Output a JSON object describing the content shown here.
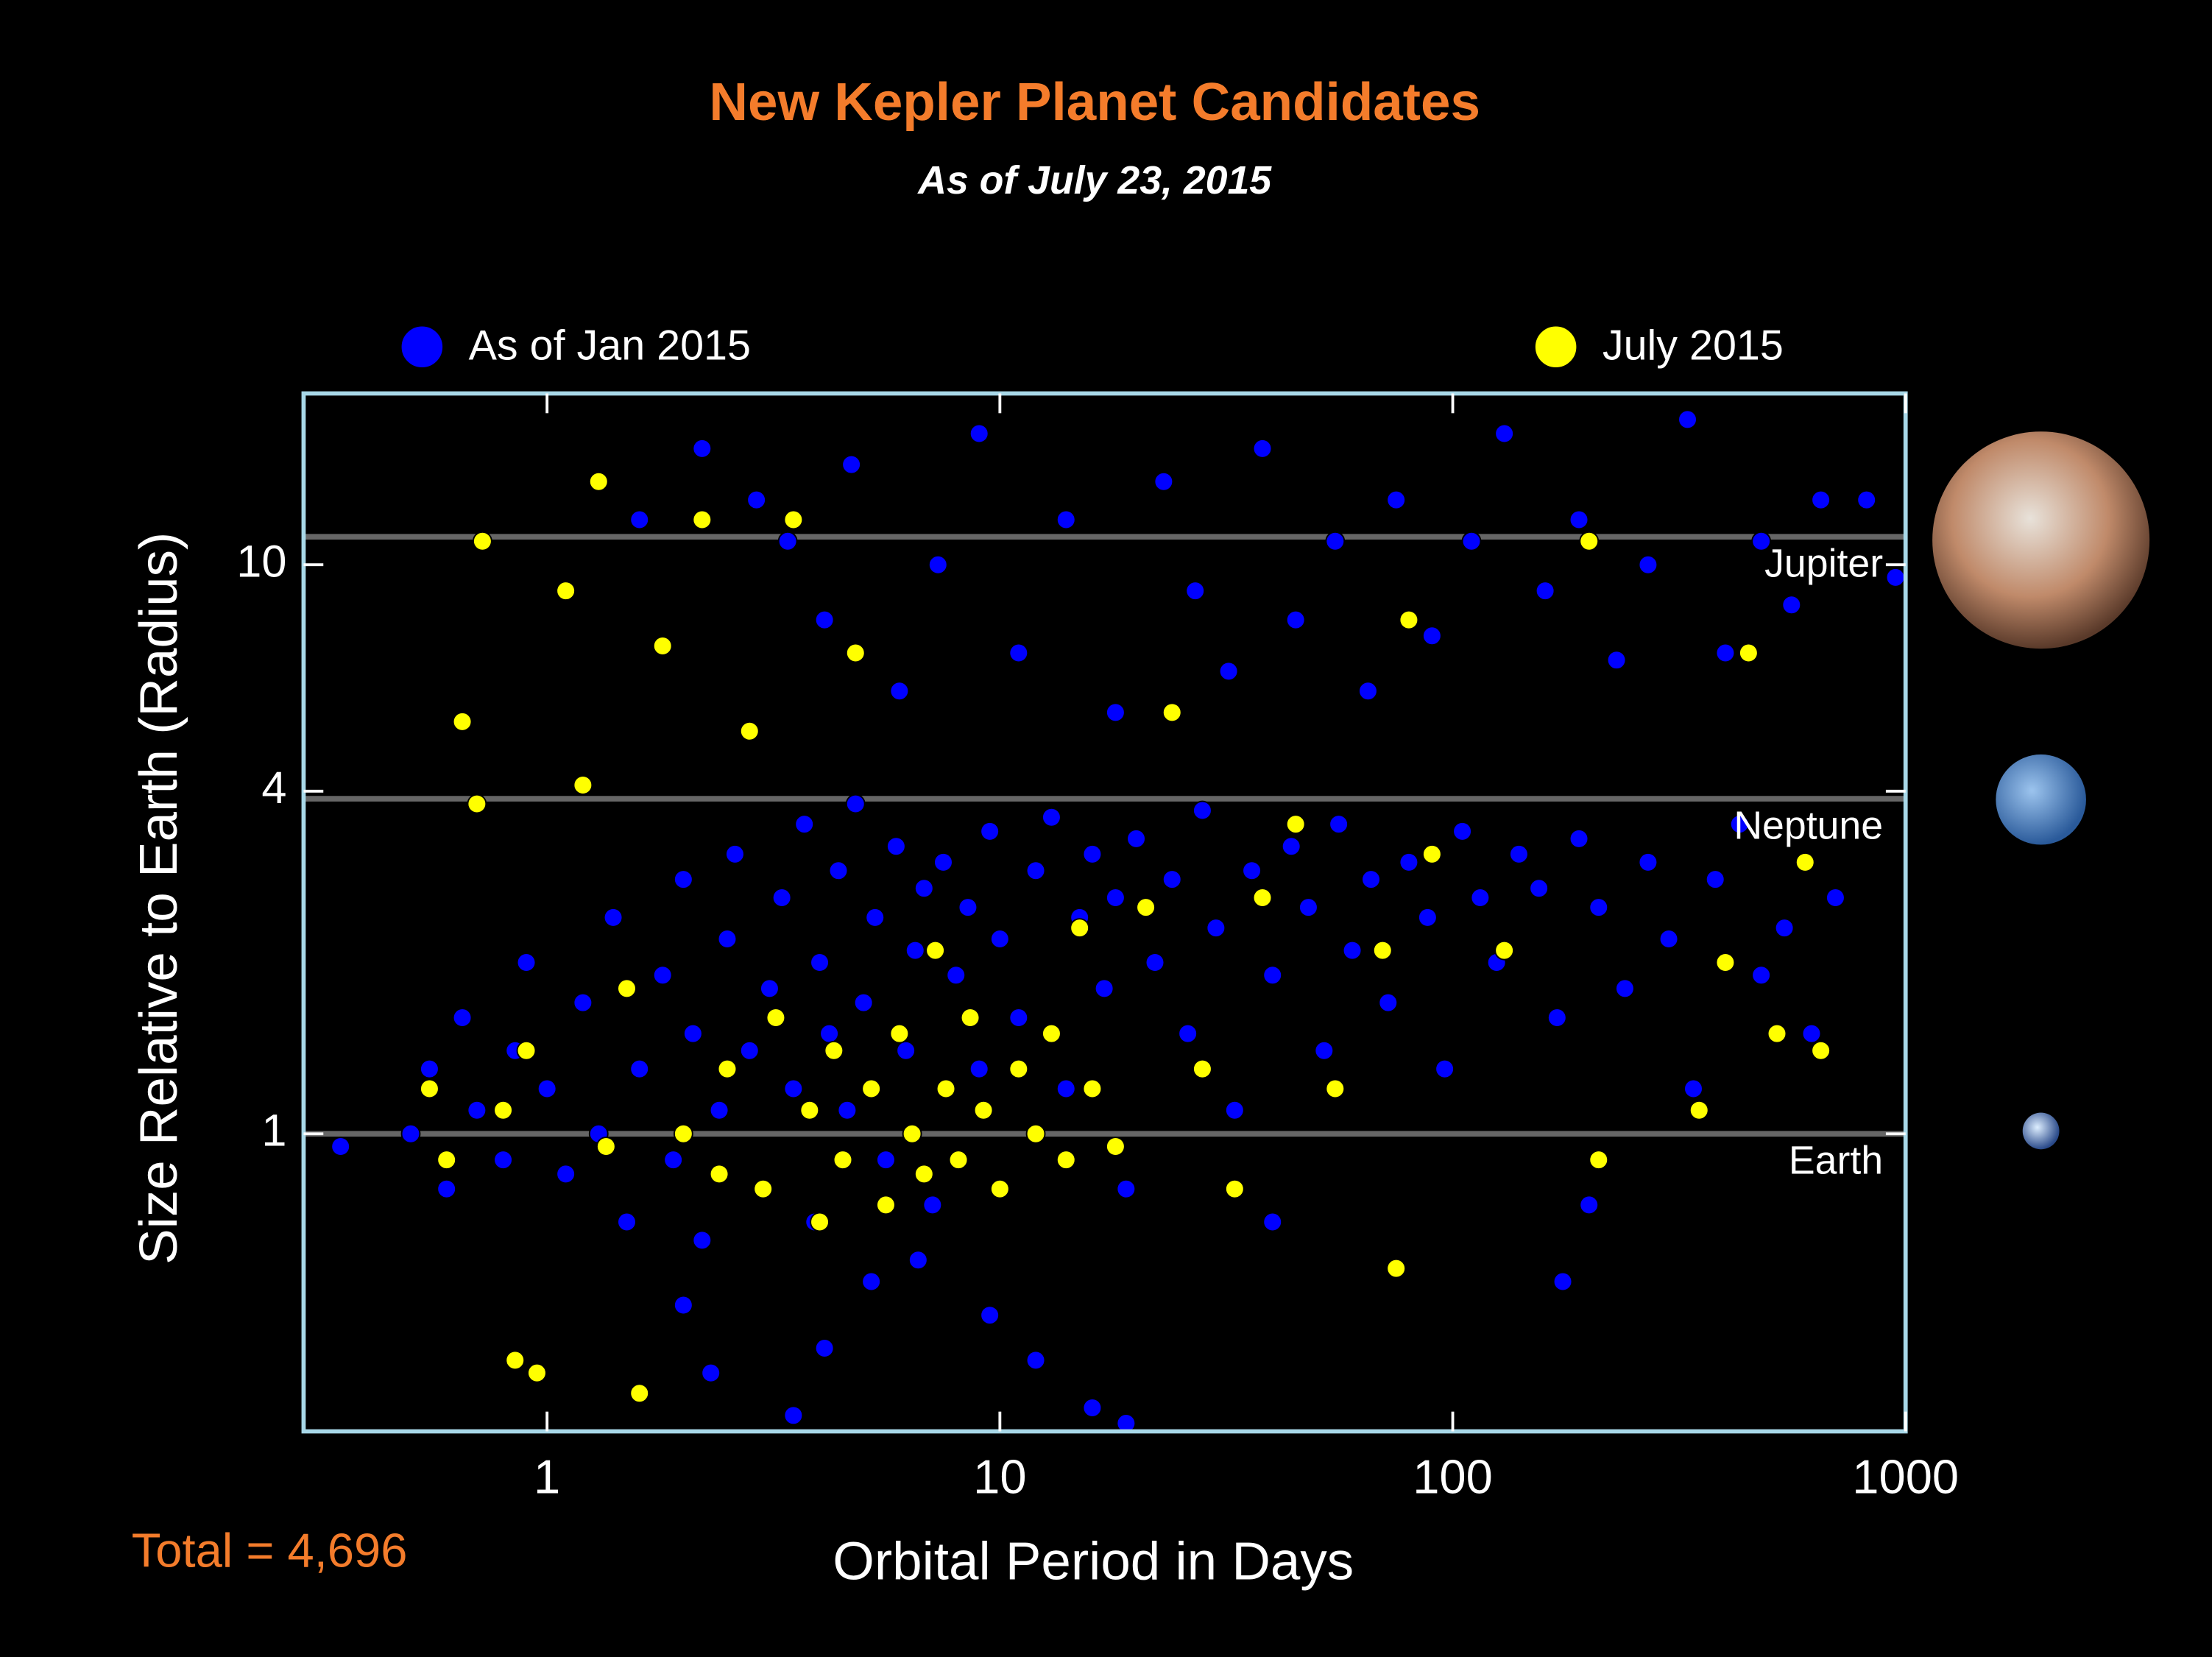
{
  "chart_data": {
    "type": "scatter",
    "title": "New Kepler Planet Candidates",
    "subtitle": "As of July 23, 2015",
    "x_label": "Orbital Period in Days",
    "y_label": "Size Relative to Earth (Radius)",
    "annotation": "Total = 4,696",
    "log_x": true,
    "log_y": true,
    "xlim": [
      0.29,
      1000
    ],
    "ylim": [
      0.3,
      20
    ],
    "xticks": [
      1,
      10,
      100,
      1000
    ],
    "yticks": [
      1,
      4,
      10
    ],
    "reference_lines": [
      {
        "value": 11.2,
        "label": "Jupiter"
      },
      {
        "value": 3.88,
        "label": "Neptune"
      },
      {
        "value": 1,
        "label": "Earth"
      }
    ],
    "series": [
      {
        "name": "As of Jan 2015",
        "color": "#0000ff",
        "x": [
          0.5,
          0.55,
          0.6,
          0.65,
          0.7,
          0.8,
          0.85,
          0.9,
          1.0,
          1.1,
          1.2,
          1.3,
          1.4,
          1.5,
          1.6,
          1.8,
          1.9,
          2.0,
          2.1,
          2.2,
          2.4,
          2.5,
          2.6,
          2.8,
          3.0,
          3.1,
          3.3,
          3.5,
          3.7,
          3.9,
          4.0,
          4.2,
          4.4,
          4.6,
          4.8,
          5.0,
          5.3,
          5.6,
          5.9,
          6.2,
          6.5,
          6.8,
          7.1,
          7.5,
          8.0,
          8.5,
          9.0,
          9.5,
          10,
          11,
          12,
          13,
          14,
          15,
          16,
          17,
          18,
          19,
          20,
          22,
          24,
          26,
          28,
          30,
          33,
          36,
          40,
          44,
          48,
          52,
          56,
          60,
          66,
          72,
          80,
          88,
          96,
          105,
          115,
          125,
          140,
          155,
          170,
          190,
          210,
          240,
          270,
          300,
          340,
          380,
          430,
          480,
          540,
          620,
          700,
          1.6,
          2.2,
          2.9,
          3.4,
          4.1,
          4.7,
          6,
          7.3,
          9,
          11,
          14,
          18,
          23,
          27,
          32,
          38,
          45,
          55,
          65,
          75,
          90,
          110,
          130,
          160,
          190,
          230,
          270,
          330,
          400,
          480,
          560,
          650,
          820,
          950,
          2.0,
          2.3,
          3.5,
          4.1,
          5.2,
          6.6,
          9.5,
          12,
          16,
          19,
          175,
          40,
          200,
          0.35
        ],
        "y": [
          1.0,
          1.3,
          0.8,
          1.6,
          1.1,
          0.9,
          1.4,
          2.0,
          1.2,
          0.85,
          1.7,
          1.0,
          2.4,
          0.7,
          1.3,
          1.9,
          0.9,
          2.8,
          1.5,
          0.65,
          1.1,
          2.2,
          3.1,
          1.4,
          0.8,
          1.8,
          2.6,
          1.2,
          3.5,
          0.7,
          2.0,
          1.5,
          2.9,
          1.1,
          3.8,
          1.7,
          2.4,
          0.9,
          3.2,
          1.4,
          2.1,
          2.7,
          0.75,
          3.0,
          1.9,
          2.5,
          1.3,
          3.4,
          2.2,
          1.6,
          2.9,
          3.6,
          1.2,
          2.4,
          3.1,
          1.8,
          2.6,
          0.8,
          3.3,
          2.0,
          2.8,
          1.5,
          3.7,
          2.3,
          1.1,
          2.9,
          1.9,
          3.2,
          2.5,
          1.4,
          3.5,
          2.1,
          2.8,
          1.7,
          3.0,
          2.4,
          1.3,
          3.4,
          2.6,
          2.0,
          3.1,
          2.7,
          1.6,
          3.3,
          2.5,
          1.8,
          3.0,
          2.2,
          1.2,
          2.8,
          3.5,
          1.9,
          2.3,
          1.5,
          2.6,
          12,
          16,
          13,
          11,
          8,
          15,
          6,
          10,
          17,
          7,
          12,
          5.5,
          14,
          9,
          6.5,
          16,
          8,
          11,
          6,
          13,
          7.5,
          11,
          17,
          9,
          12,
          6.8,
          10,
          18,
          7,
          11,
          8.5,
          13,
          13,
          9.5,
          0.5,
          0.38,
          0.32,
          0.42,
          0.55,
          0.6,
          0.48,
          0.4,
          0.33,
          0.31,
          0.55,
          0.7,
          0.75,
          0.95
        ]
      },
      {
        "name": "July 2015",
        "color": "#ffff00",
        "x": [
          0.55,
          0.6,
          0.65,
          0.7,
          0.72,
          0.8,
          0.85,
          0.9,
          0.95,
          1.1,
          1.2,
          1.3,
          1.35,
          1.5,
          1.6,
          1.8,
          2.0,
          2.2,
          2.4,
          2.5,
          2.8,
          3.0,
          3.2,
          3.5,
          3.8,
          4.0,
          4.3,
          4.5,
          4.8,
          5.2,
          5.6,
          6.0,
          6.4,
          6.8,
          7.2,
          7.6,
          8.1,
          8.6,
          9.2,
          10,
          11,
          12,
          13,
          14,
          15,
          16,
          18,
          21,
          24,
          28,
          33,
          38,
          45,
          55,
          70,
          75,
          80,
          90,
          130,
          200,
          210,
          350,
          400,
          450,
          520,
          600,
          650
        ],
        "y": [
          1.2,
          0.9,
          5.3,
          3.8,
          11,
          1.1,
          0.4,
          1.4,
          0.38,
          9,
          4.1,
          14,
          0.95,
          1.8,
          0.35,
          7.2,
          1.0,
          12,
          0.85,
          1.3,
          5.1,
          0.8,
          1.6,
          12,
          1.1,
          0.7,
          1.4,
          0.9,
          7,
          1.2,
          0.75,
          1.5,
          1.0,
          0.85,
          2.1,
          1.2,
          0.9,
          1.6,
          1.1,
          0.8,
          1.3,
          1.0,
          1.5,
          0.9,
          2.3,
          1.2,
          0.95,
          2.5,
          5.5,
          1.3,
          0.8,
          2.6,
          3.5,
          1.2,
          2.1,
          0.58,
          8,
          3.1,
          2.1,
          11,
          0.9,
          1.1,
          2.0,
          7,
          1.5,
          3.0,
          1.4
        ]
      }
    ]
  }
}
